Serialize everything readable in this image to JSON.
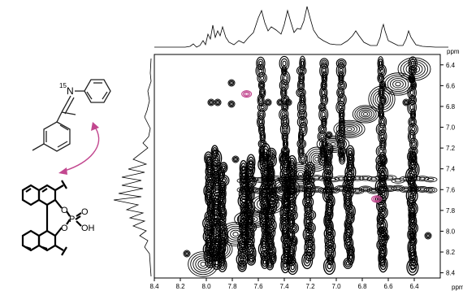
{
  "figure": {
    "unit_label": "ppm",
    "x_axis": {
      "reversed": true,
      "range": [
        8.4,
        6.2
      ],
      "ticks": [
        "8.4",
        "8.2",
        "8.0",
        "7.8",
        "7.6",
        "7.4",
        "7.2",
        "7.0",
        "6.8",
        "6.6",
        "6.4"
      ],
      "unit": "ppm"
    },
    "y_axis": {
      "reversed": true,
      "range": [
        6.3,
        8.45
      ],
      "ticks": [
        "6.4",
        "6.6",
        "6.8",
        "7.0",
        "7.2",
        "7.4",
        "7.6",
        "7.8",
        "8.0",
        "8.2",
        "8.4"
      ],
      "unit": "ppm"
    },
    "highlight_color": "#c2478f",
    "highlighted_crosspeaks": [
      {
        "x": 7.69,
        "y": 6.68
      },
      {
        "x": 6.69,
        "y": 7.69
      }
    ],
    "molecules": {
      "imine_label_isotope": "15",
      "imine_label_atom": "N",
      "acid_label_o1": "O",
      "acid_label_o2": "O",
      "acid_label_p": "P",
      "acid_label_o3": "O",
      "acid_label_oh": "OH"
    }
  }
}
